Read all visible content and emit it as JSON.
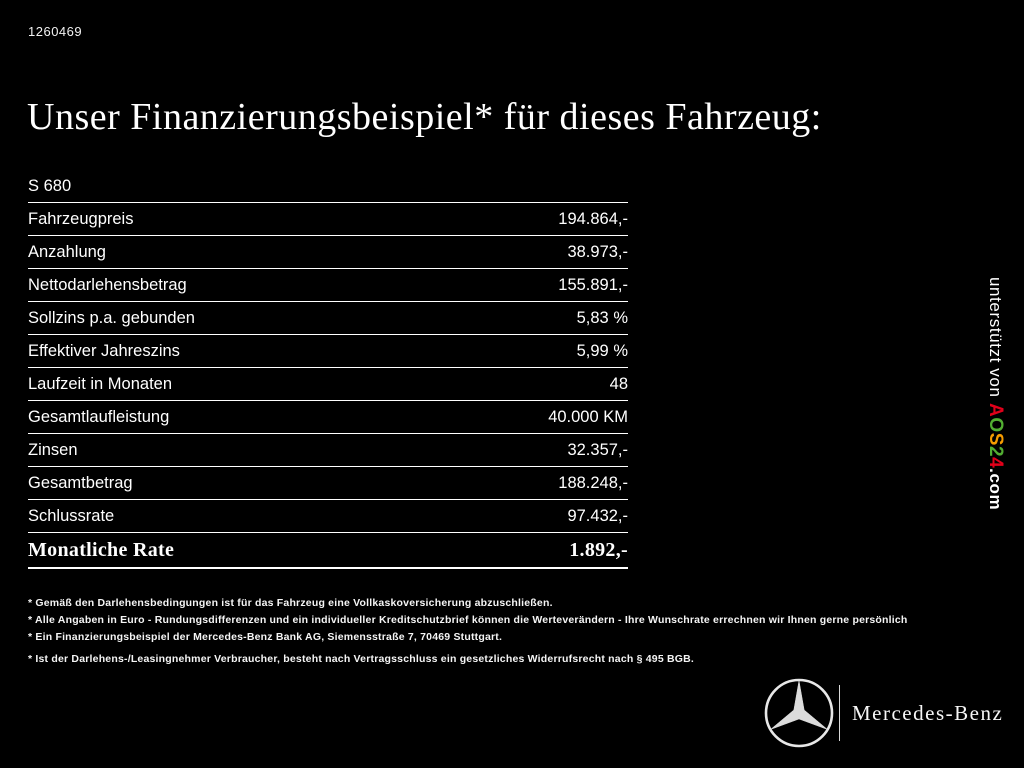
{
  "theme": {
    "background": "#000000",
    "text": "#ffffff",
    "table_line": "#ffffff"
  },
  "doc_id": "1260469",
  "headline": "Unser Finanzierungsbeispiel* für dieses Fahrzeug:",
  "table": {
    "model": "S 680",
    "rows": [
      {
        "label": "Fahrzeugpreis",
        "value": "194.864,-"
      },
      {
        "label": "Anzahlung",
        "value": "38.973,-"
      },
      {
        "label": "Nettodarlehensbetrag",
        "value": "155.891,-"
      },
      {
        "label": "Sollzins p.a. gebunden",
        "value": "5,83 %"
      },
      {
        "label": "Effektiver Jahreszins",
        "value": "5,99 %"
      },
      {
        "label": "Laufzeit in Monaten",
        "value": "48"
      },
      {
        "label": "Gesamtlaufleistung",
        "value": "40.000 KM"
      },
      {
        "label": "Zinsen",
        "value": "32.357,-"
      },
      {
        "label": "Gesamtbetrag",
        "value": "188.248,-"
      },
      {
        "label": "Schlussrate",
        "value": "97.432,-"
      }
    ],
    "total_row": {
      "label": "Monatliche Rate",
      "value": "1.892,-"
    }
  },
  "footnotes": [
    "* Gemäß den Darlehensbedingungen ist für das Fahrzeug eine Vollkaskoversicherung abzuschließen.",
    "* Alle Angaben in Euro - Rundungsdifferenzen und ein individueller Kreditschutzbrief können die Werteverändern - Ihre Wunschrate errechnen wir Ihnen gerne persönlich",
    "* Ein Finanzierungsbeispiel der Mercedes-Benz Bank AG, Siemensstraße 7, 70469 Stuttgart.",
    "* Ist der Darlehens-/Leasingnehmer Verbraucher, besteht nach Vertragsschluss ein gesetzliches Widerrufsrecht nach § 495 BGB."
  ],
  "vertical_banner": {
    "prefix": "unterstützt von ",
    "brand_letters": [
      {
        "char": "A",
        "color": "#e2001a"
      },
      {
        "char": "O",
        "color": "#52ae32"
      },
      {
        "char": "S",
        "color": "#f59b00"
      },
      {
        "char": "2",
        "color": "#52ae32"
      },
      {
        "char": "4",
        "color": "#e2001a"
      }
    ],
    "suffix": ".com"
  },
  "footer": {
    "brand": "Mercedes-Benz"
  }
}
